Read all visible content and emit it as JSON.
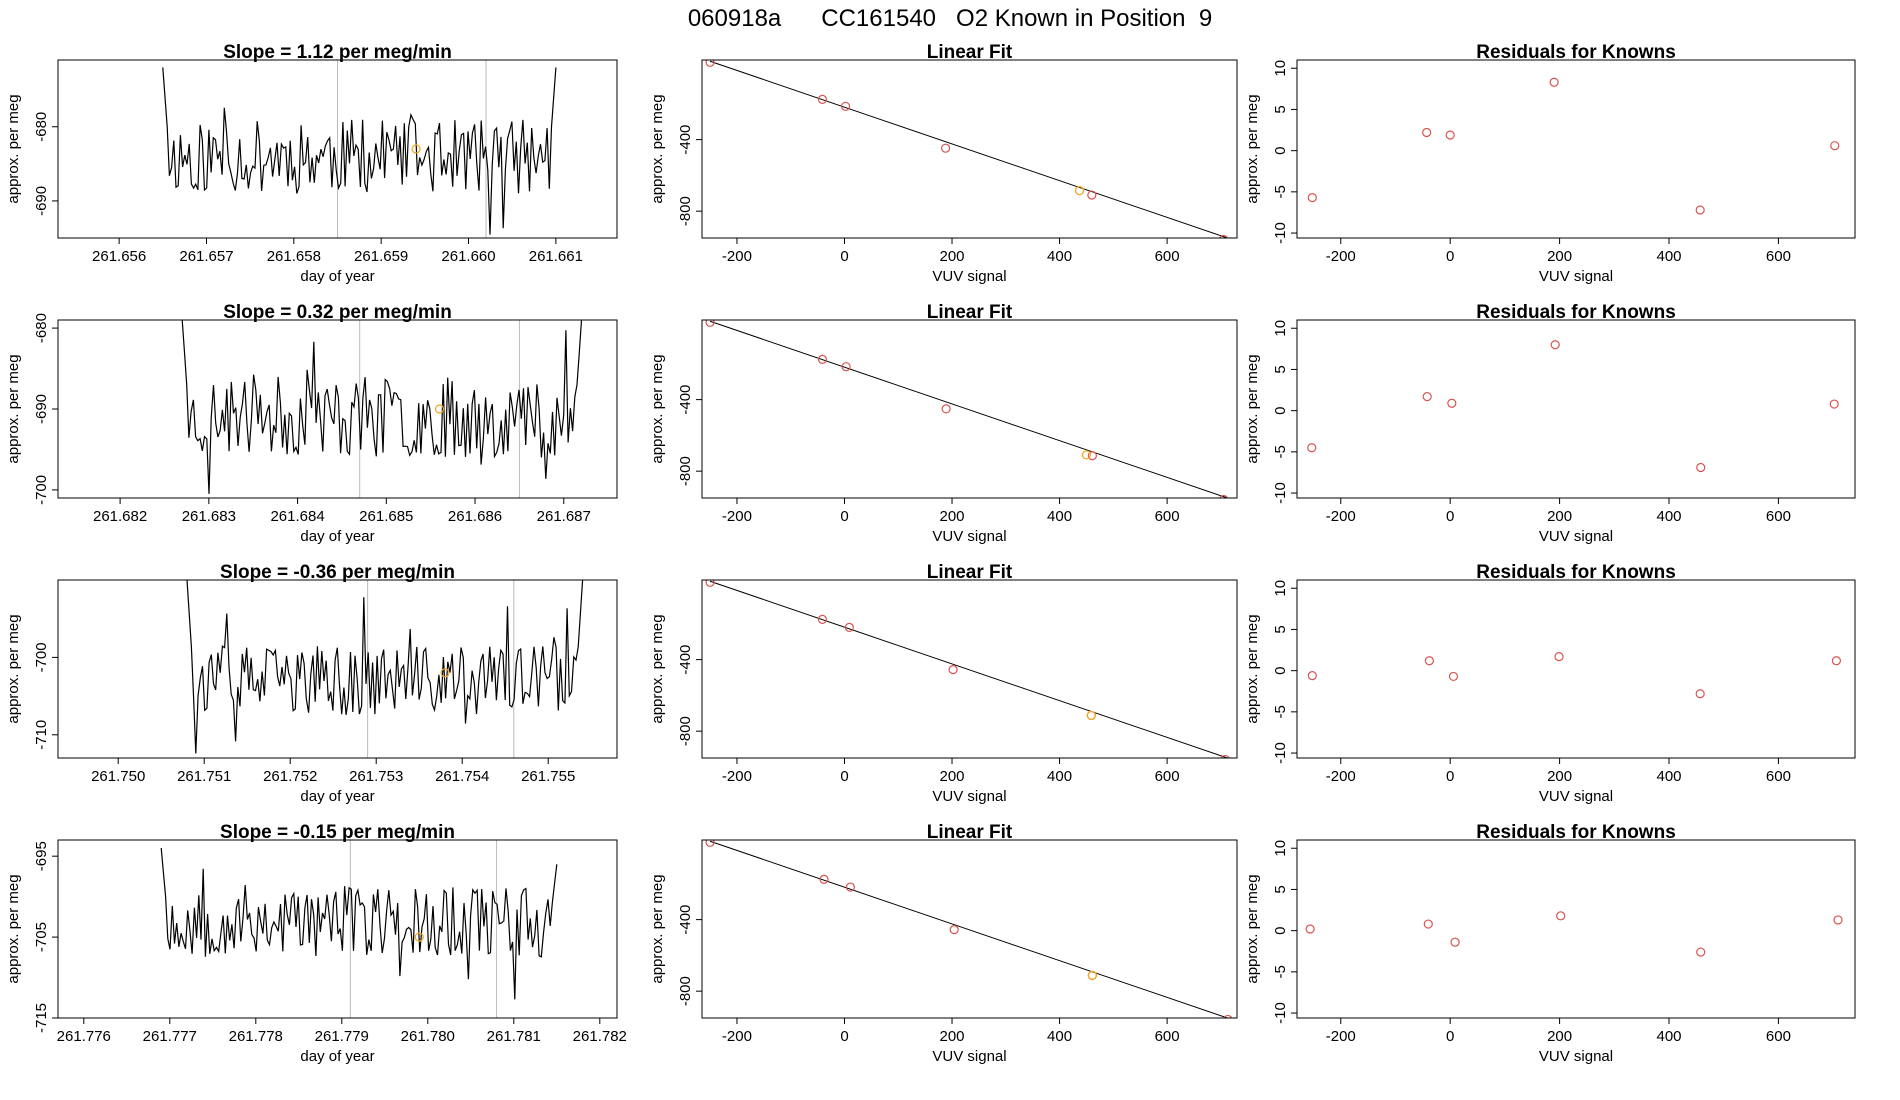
{
  "figure": {
    "title": "060918a      CC161540   O2 Known in Position  9"
  },
  "chart_data": [
    {
      "id": "r1-ts",
      "type": "line",
      "title": "Slope =  1.12  per meg/min",
      "xlabel": "day of year",
      "ylabel": "approx. per meg",
      "xlim": [
        261.6553,
        261.6617
      ],
      "ylim": [
        -695,
        -671
      ],
      "xticks": [
        261.656,
        261.657,
        261.658,
        261.659,
        261.66,
        261.661
      ],
      "xtick_labels": [
        "261.656",
        "261.657",
        "261.658",
        "261.659",
        "261.660",
        "261.661"
      ],
      "yticks": [
        -690,
        -680
      ],
      "ytick_labels": [
        "-690",
        "-680"
      ],
      "vlines": [
        261.6585,
        261.6602
      ],
      "series": [
        {
          "name": "signal",
          "color": "#000000",
          "x_start": 261.6565,
          "x_end": 261.661,
          "y_start": -672,
          "y_end": -672,
          "mean": -684,
          "amp": 5,
          "n": 180,
          "seed": 11
        }
      ],
      "highlight": {
        "x": 261.6594,
        "y": -683,
        "color": "#f5a623"
      }
    },
    {
      "id": "r1-fit",
      "type": "scatter",
      "title": "Linear Fit",
      "xlabel": "VUV signal",
      "ylabel": "approx. per meg",
      "xlim": [
        -265,
        730
      ],
      "ylim": [
        -950,
        45
      ],
      "xticks": [
        -200,
        0,
        200,
        400,
        600
      ],
      "xtick_labels": [
        "-200",
        "0",
        "200",
        "400",
        "600"
      ],
      "yticks": [
        -800,
        -400
      ],
      "ytick_labels": [
        "-800",
        "-400"
      ],
      "points": [
        [
          -250,
          32
        ],
        [
          -41,
          -175
        ],
        [
          2,
          -214
        ],
        [
          188,
          -448
        ],
        [
          460,
          -710
        ],
        [
          705,
          -958
        ]
      ],
      "point_color": "#d9534f",
      "highlight": {
        "x": 437,
        "y": -685,
        "color": "#f5a623"
      },
      "fit_line": [
        [
          -250,
          38
        ],
        [
          720,
          -958
        ]
      ]
    },
    {
      "id": "r1-res",
      "type": "scatter",
      "title": "Residuals for Knowns",
      "xlabel": "VUV signal",
      "ylabel": "approx. per meg",
      "xlim": [
        -280,
        740
      ],
      "ylim": [
        -10.6,
        11
      ],
      "xticks": [
        -200,
        0,
        200,
        400,
        600
      ],
      "xtick_labels": [
        "-200",
        "0",
        "200",
        "400",
        "600"
      ],
      "yticks": [
        -10,
        -5,
        0,
        5,
        10
      ],
      "ytick_labels": [
        "-10",
        "-5",
        "0",
        "5",
        "10"
      ],
      "points": [
        [
          -252,
          -5.7
        ],
        [
          -43,
          2.2
        ],
        [
          0,
          1.9
        ],
        [
          190,
          8.3
        ],
        [
          457,
          -7.2
        ],
        [
          703,
          0.6
        ]
      ],
      "point_color": "#d9534f"
    },
    {
      "id": "r2-ts",
      "type": "line",
      "title": "Slope =  0.32  per meg/min",
      "xlabel": "day of year",
      "ylabel": "approx. per meg",
      "xlim": [
        261.6813,
        261.6876
      ],
      "ylim": [
        -701,
        -679
      ],
      "xticks": [
        261.682,
        261.683,
        261.684,
        261.685,
        261.686,
        261.687
      ],
      "xtick_labels": [
        "261.682",
        "261.683",
        "261.684",
        "261.685",
        "261.686",
        "261.687"
      ],
      "yticks": [
        -700,
        -690,
        -680
      ],
      "ytick_labels": [
        "-700",
        "-690",
        "-680"
      ],
      "vlines": [
        261.6847,
        261.6865
      ],
      "series": [
        {
          "name": "signal",
          "color": "#000000",
          "x_start": 261.6827,
          "x_end": 261.6872,
          "y_start": -679,
          "y_end": -679,
          "mean": -691,
          "amp": 5,
          "n": 180,
          "seed": 23
        }
      ],
      "highlight": {
        "x": 261.6856,
        "y": -690,
        "color": "#f5a623"
      }
    },
    {
      "id": "r2-fit",
      "type": "scatter",
      "title": "Linear Fit",
      "xlabel": "VUV signal",
      "ylabel": "approx. per meg",
      "xlim": [
        -265,
        730
      ],
      "ylim": [
        -950,
        45
      ],
      "xticks": [
        -200,
        0,
        200,
        400,
        600
      ],
      "xtick_labels": [
        "-200",
        "0",
        "200",
        "400",
        "600"
      ],
      "yticks": [
        -800,
        -400
      ],
      "ytick_labels": [
        "-800",
        "-400"
      ],
      "points": [
        [
          -250,
          32
        ],
        [
          -41,
          -175
        ],
        [
          3,
          -216
        ],
        [
          189,
          -452
        ],
        [
          461,
          -714
        ],
        [
          705,
          -958
        ]
      ],
      "point_color": "#d9534f",
      "highlight": {
        "x": 450,
        "y": -709,
        "color": "#f5a623"
      },
      "fit_line": [
        [
          -250,
          38
        ],
        [
          720,
          -958
        ]
      ]
    },
    {
      "id": "r2-res",
      "type": "scatter",
      "title": "Residuals for Knowns",
      "xlabel": "VUV signal",
      "ylabel": "approx. per meg",
      "xlim": [
        -280,
        740
      ],
      "ylim": [
        -10.6,
        11
      ],
      "xticks": [
        -200,
        0,
        200,
        400,
        600
      ],
      "xtick_labels": [
        "-200",
        "0",
        "200",
        "400",
        "600"
      ],
      "yticks": [
        -10,
        -5,
        0,
        5,
        10
      ],
      "ytick_labels": [
        "-10",
        "-5",
        "0",
        "5",
        "10"
      ],
      "points": [
        [
          -253,
          -4.5
        ],
        [
          -42,
          1.7
        ],
        [
          3,
          0.9
        ],
        [
          192,
          8.0
        ],
        [
          458,
          -6.9
        ],
        [
          702,
          0.8
        ]
      ],
      "point_color": "#d9534f"
    },
    {
      "id": "r3-ts",
      "type": "line",
      "title": "Slope =  -0.36  per meg/min",
      "xlabel": "day of year",
      "ylabel": "approx. per meg",
      "xlim": [
        261.7493,
        261.7558
      ],
      "ylim": [
        -713,
        -690
      ],
      "xticks": [
        261.75,
        261.751,
        261.752,
        261.753,
        261.754,
        261.755
      ],
      "xtick_labels": [
        "261.750",
        "261.751",
        "261.752",
        "261.753",
        "261.754",
        "261.755"
      ],
      "yticks": [
        -710,
        -700
      ],
      "ytick_labels": [
        "-710",
        "-700"
      ],
      "vlines": [
        261.7529,
        261.7546
      ],
      "series": [
        {
          "name": "signal",
          "color": "#000000",
          "x_start": 261.7508,
          "x_end": 261.7554,
          "y_start": -690,
          "y_end": -690,
          "mean": -703,
          "amp": 4.5,
          "n": 180,
          "seed": 37
        }
      ],
      "highlight": {
        "x": 261.7538,
        "y": -702,
        "color": "#f5a623"
      }
    },
    {
      "id": "r3-fit",
      "type": "scatter",
      "title": "Linear Fit",
      "xlabel": "VUV signal",
      "ylabel": "approx. per meg",
      "xlim": [
        -265,
        730
      ],
      "ylim": [
        -950,
        45
      ],
      "xticks": [
        -200,
        0,
        200,
        400,
        600
      ],
      "xtick_labels": [
        "-200",
        "0",
        "200",
        "400",
        "600"
      ],
      "yticks": [
        -800,
        -400
      ],
      "ytick_labels": [
        "-800",
        "-400"
      ],
      "points": [
        [
          -250,
          32
        ],
        [
          -41,
          -175
        ],
        [
          9,
          -220
        ],
        [
          202,
          -456
        ],
        [
          459,
          -712
        ],
        [
          708,
          -958
        ]
      ],
      "point_color": "#d9534f",
      "highlight": {
        "x": 459,
        "y": -712,
        "color": "#f5a623"
      },
      "fit_line": [
        [
          -250,
          38
        ],
        [
          720,
          -958
        ]
      ]
    },
    {
      "id": "r3-res",
      "type": "scatter",
      "title": "Residuals for Knowns",
      "xlabel": "VUV signal",
      "ylabel": "approx. per meg",
      "xlim": [
        -280,
        740
      ],
      "ylim": [
        -10.6,
        11
      ],
      "xticks": [
        -200,
        0,
        200,
        400,
        600
      ],
      "xtick_labels": [
        "-200",
        "0",
        "200",
        "400",
        "600"
      ],
      "yticks": [
        -10,
        -5,
        0,
        5,
        10
      ],
      "ytick_labels": [
        "-10",
        "-5",
        "0",
        "5",
        "10"
      ],
      "points": [
        [
          -252,
          -0.6
        ],
        [
          -38,
          1.2
        ],
        [
          6,
          -0.7
        ],
        [
          199,
          1.7
        ],
        [
          457,
          -2.8
        ],
        [
          706,
          1.2
        ]
      ],
      "point_color": "#d9534f"
    },
    {
      "id": "r4-ts",
      "type": "line",
      "title": "Slope =  -0.15  per meg/min",
      "xlabel": "day of year",
      "ylabel": "approx. per meg",
      "xlim": [
        261.7757,
        261.7822
      ],
      "ylim": [
        -715,
        -693
      ],
      "xticks": [
        261.776,
        261.777,
        261.778,
        261.779,
        261.78,
        261.781,
        261.782
      ],
      "xtick_labels": [
        "261.776",
        "261.777",
        "261.778",
        "261.779",
        "261.780",
        "261.781",
        "261.782"
      ],
      "yticks": [
        -715,
        -705,
        -695
      ],
      "ytick_labels": [
        "-715",
        "-705",
        "-695"
      ],
      "vlines": [
        261.7791,
        261.7808
      ],
      "series": [
        {
          "name": "signal",
          "color": "#000000",
          "x_start": 261.7769,
          "x_end": 261.7815,
          "y_start": -694,
          "y_end": -696,
          "mean": -703,
          "amp": 4.5,
          "n": 180,
          "seed": 53
        }
      ],
      "highlight": {
        "x": 261.7799,
        "y": -705,
        "color": "#f5a623"
      }
    },
    {
      "id": "r4-fit",
      "type": "scatter",
      "title": "Linear Fit",
      "xlabel": "VUV signal",
      "ylabel": "approx. per meg",
      "xlim": [
        -265,
        730
      ],
      "ylim": [
        -950,
        45
      ],
      "xticks": [
        -200,
        0,
        200,
        400,
        600
      ],
      "xtick_labels": [
        "-200",
        "0",
        "200",
        "400",
        "600"
      ],
      "yticks": [
        -800,
        -400
      ],
      "ytick_labels": [
        "-800",
        "-400"
      ],
      "points": [
        [
          -250,
          32
        ],
        [
          -38,
          -175
        ],
        [
          11,
          -218
        ],
        [
          204,
          -456
        ],
        [
          461,
          -712
        ],
        [
          713,
          -958
        ]
      ],
      "point_color": "#d9534f",
      "highlight": {
        "x": 461,
        "y": -712,
        "color": "#f5a623"
      },
      "fit_line": [
        [
          -250,
          38
        ],
        [
          720,
          -958
        ]
      ]
    },
    {
      "id": "r4-res",
      "type": "scatter",
      "title": "Residuals for Knowns",
      "xlabel": "VUV signal",
      "ylabel": "approx. per meg",
      "xlim": [
        -280,
        740
      ],
      "ylim": [
        -10.6,
        11
      ],
      "xticks": [
        -200,
        0,
        200,
        400,
        600
      ],
      "xtick_labels": [
        "-200",
        "0",
        "200",
        "400",
        "600"
      ],
      "yticks": [
        -10,
        -5,
        0,
        5,
        10
      ],
      "ytick_labels": [
        "-10",
        "-5",
        "0",
        "5",
        "10"
      ],
      "points": [
        [
          -256,
          0.2
        ],
        [
          -40,
          0.8
        ],
        [
          9,
          -1.4
        ],
        [
          202,
          1.8
        ],
        [
          458,
          -2.6
        ],
        [
          709,
          1.3
        ]
      ],
      "point_color": "#d9534f"
    }
  ]
}
